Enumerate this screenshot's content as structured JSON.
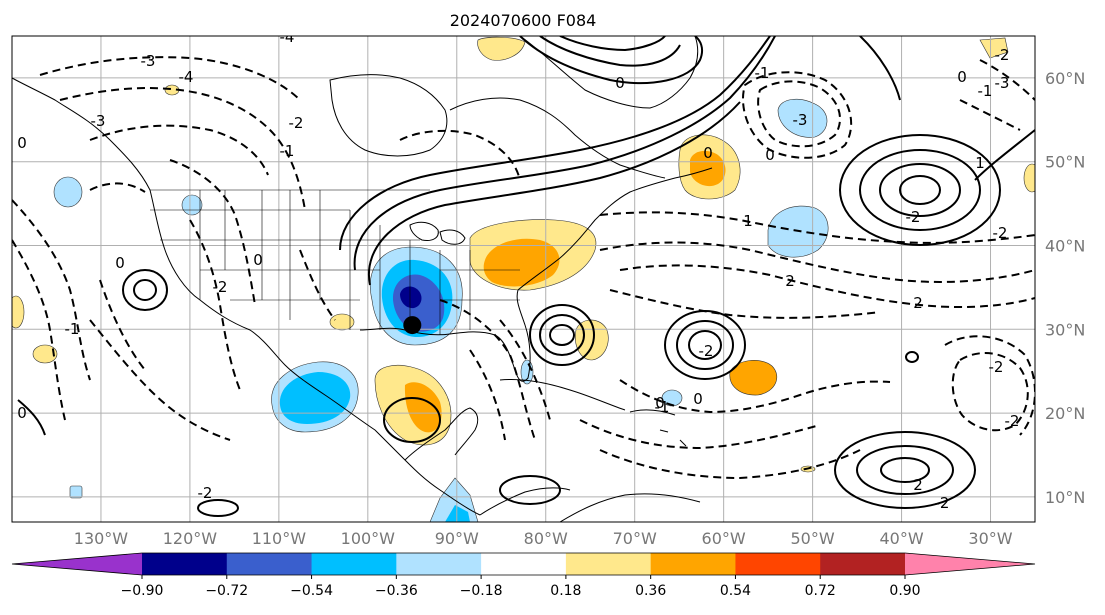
{
  "title": "2024070600 F084",
  "map": {
    "lon_range": [
      -140,
      -25
    ],
    "lat_range": [
      7,
      65
    ],
    "grid_lon": [
      -130,
      -120,
      -110,
      -100,
      -90,
      -80,
      -70,
      -60,
      -50,
      -40,
      -30
    ],
    "grid_lat": [
      10,
      20,
      30,
      40,
      50,
      60
    ],
    "lon_labels": [
      "130°W",
      "120°W",
      "110°W",
      "100°W",
      "90°W",
      "80°W",
      "70°W",
      "60°W",
      "50°W",
      "40°W",
      "30°W"
    ],
    "lat_labels": [
      "10°N",
      "20°N",
      "30°N",
      "40°N",
      "50°N",
      "60°N"
    ],
    "marker": {
      "lon": -95,
      "lat": 30.5
    },
    "contour_labels": [
      "-4",
      "-3",
      "-4",
      "-3",
      "-2",
      "-1",
      "0",
      "-2",
      "0",
      "-1",
      "0",
      "-2",
      "-1",
      "-3",
      "-3",
      "0",
      "1",
      "2",
      "2",
      "-1",
      "-2",
      "-2",
      "-2",
      "0",
      "-2",
      "2",
      "0",
      "-1",
      "-2",
      "-2",
      "0",
      "-2",
      "1",
      "0",
      "0",
      "0"
    ]
  },
  "colorbar": {
    "tick_labels": [
      "−0.90",
      "−0.72",
      "−0.54",
      "−0.36",
      "−0.18",
      "0.18",
      "0.36",
      "0.54",
      "0.72",
      "0.90"
    ],
    "colors": [
      "#9932cc",
      "#00008b",
      "#3a5fcd",
      "#00bfff",
      "#b0e2ff",
      "#ffffff",
      "#ffe88c",
      "#ffa500",
      "#ff4500",
      "#b22222",
      "#ff82ab"
    ]
  }
}
